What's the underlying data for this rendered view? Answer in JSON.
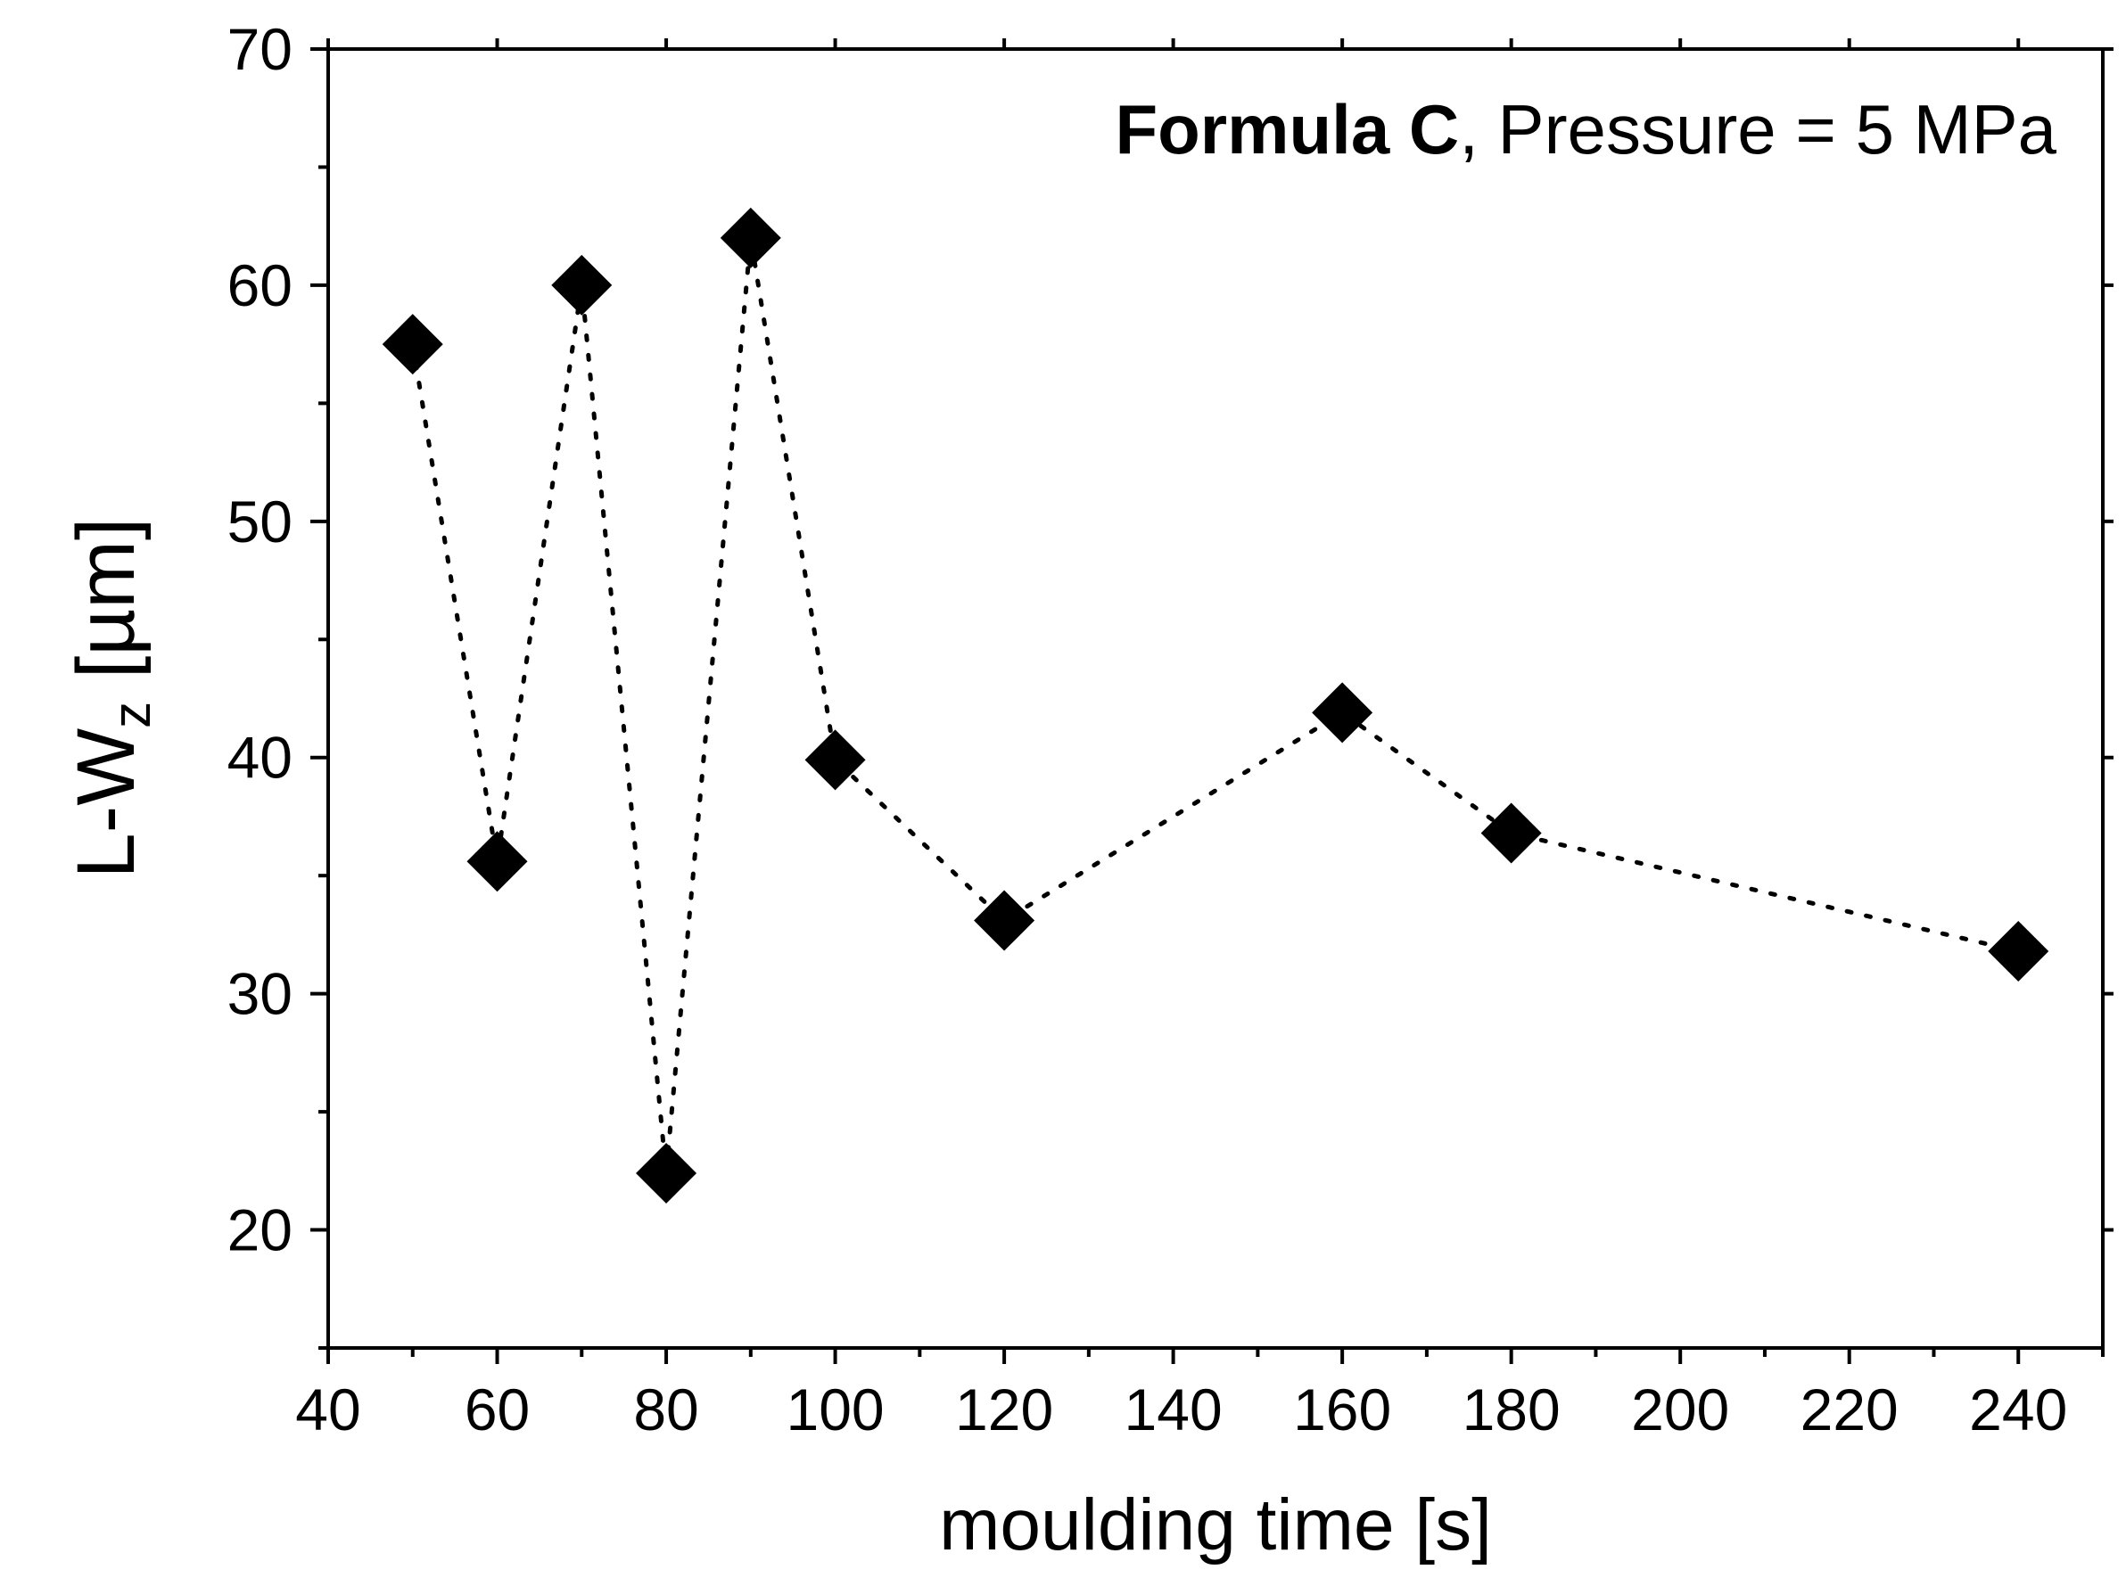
{
  "chart_data": {
    "type": "scatter",
    "title": "",
    "annotation": {
      "bold": "Formula C",
      "rest": ", Pressure = 5 MPa"
    },
    "xlabel": "moulding time [s]",
    "ylabel": {
      "main": "L-W",
      "sub": "z",
      "unit": " [µm]"
    },
    "xlim": [
      40,
      250
    ],
    "ylim": [
      15,
      70
    ],
    "xticks": [
      40,
      60,
      80,
      100,
      120,
      140,
      160,
      180,
      200,
      220,
      240
    ],
    "yticks": [
      20,
      30,
      40,
      50,
      60,
      70
    ],
    "xminor": [
      50,
      70,
      90,
      110,
      130,
      150,
      170,
      190,
      210,
      230,
      250
    ],
    "yminor": [
      15,
      25,
      35,
      45,
      55,
      65
    ],
    "grid": false,
    "series": [
      {
        "name": "Formula C, Pressure = 5 MPa",
        "marker": "diamond",
        "line": "dotted",
        "color": "#000000",
        "x": [
          50,
          60,
          70,
          80,
          90,
          100,
          120,
          160,
          180,
          240
        ],
        "y": [
          57.5,
          35.6,
          60.0,
          22.4,
          62.0,
          39.9,
          33.1,
          41.9,
          36.8,
          31.8
        ]
      }
    ]
  }
}
